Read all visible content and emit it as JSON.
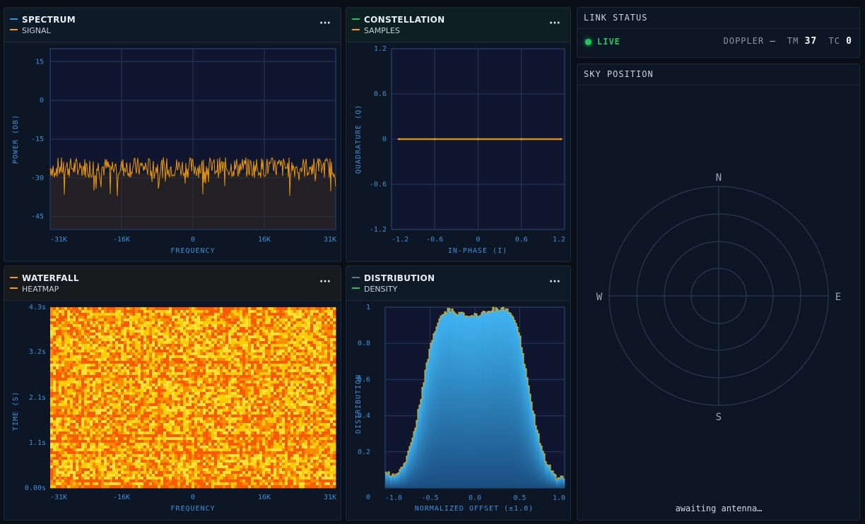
{
  "colors": {
    "spectrum_accent": "#2f8fe0",
    "signal": "#f59e0b",
    "constellation_accent": "#22c55e",
    "waterfall_accent": "#f59e0b",
    "distribution_accent": "#64748b",
    "density": "#22c55e",
    "live": "#22c55e"
  },
  "spectrum": {
    "title": "SPECTRUM",
    "series_label": "SIGNAL",
    "menu_label": "···",
    "ylabel": "POWER (DB)",
    "xlabel": "FREQUENCY",
    "yticks": [
      "15",
      "0",
      "-15",
      "-30",
      "-45"
    ],
    "xticks": [
      "-31K",
      "-16K",
      "0",
      "16K",
      "31K"
    ]
  },
  "constellation": {
    "title": "CONSTELLATION",
    "series_label": "SAMPLES",
    "menu_label": "···",
    "ylabel": "QUADRATURE (Q)",
    "xlabel": "IN-PHASE (I)",
    "yticks": [
      "1.2",
      "0.6",
      "0",
      "-0.6",
      "-1.2"
    ],
    "xticks": [
      "-1.2",
      "-0.6",
      "0",
      "0.6",
      "1.2"
    ]
  },
  "waterfall": {
    "title": "WATERFALL",
    "series_label": "HEATMAP",
    "menu_label": "···",
    "ylabel": "TIME (S)",
    "xlabel": "FREQUENCY",
    "yticks": [
      "4.3s",
      "3.2s",
      "2.1s",
      "1.1s",
      "0.00s"
    ],
    "xticks": [
      "-31K",
      "-16K",
      "0",
      "16K",
      "31K"
    ]
  },
  "distribution": {
    "title": "DISTRIBUTION",
    "series_label": "DENSITY",
    "menu_label": "···",
    "ylabel": "DISTRIBUTION",
    "xlabel": "NORMALIZED OFFSET (±1.0)",
    "yticks": [
      "1",
      "0.8",
      "0.6",
      "0.4",
      "0.2",
      "0"
    ],
    "xticks": [
      "-1.0",
      "-0.5",
      "0.0",
      "0.5",
      "1.0"
    ]
  },
  "link_status": {
    "title": "LINK STATUS",
    "live_label": "LIVE",
    "doppler_label": "DOPPLER",
    "doppler_value": "—",
    "tm_label": "TM",
    "tm_value": "37",
    "tc_label": "TC",
    "tc_value": "0"
  },
  "sky_position": {
    "title": "SKY POSITION",
    "north": "N",
    "south": "S",
    "east": "E",
    "west": "W",
    "status": "awaiting antenna…"
  },
  "chart_data": [
    {
      "type": "line",
      "series": [
        {
          "name": "SIGNAL",
          "pattern": "noise",
          "mean": -26,
          "spread": 4
        }
      ],
      "x_range": [
        -31000,
        31000
      ],
      "ylim": [
        -50,
        20
      ],
      "xlabel": "FREQUENCY",
      "ylabel": "POWER (DB)",
      "grid": true
    },
    {
      "type": "scatter",
      "series": [
        {
          "name": "SAMPLES",
          "points": [
            [
              -1.2,
              0
            ],
            [
              -0.6,
              0
            ],
            [
              0,
              0
            ],
            [
              0.6,
              0
            ],
            [
              1.2,
              0
            ]
          ]
        }
      ],
      "xlim": [
        -1.2,
        1.2
      ],
      "ylim": [
        -1.2,
        1.2
      ],
      "xlabel": "IN-PHASE (I)",
      "ylabel": "QUADRATURE (Q)",
      "grid": true
    },
    {
      "type": "heatmap",
      "x_range": [
        -31000,
        31000
      ],
      "y_range": [
        0,
        4.3
      ],
      "colormap": [
        "#ff5a00",
        "#ff8c00",
        "#ffcc00",
        "#ffe23a"
      ],
      "xlabel": "FREQUENCY",
      "ylabel": "TIME (S)"
    },
    {
      "type": "bar",
      "series": [
        {
          "name": "DENSITY"
        }
      ],
      "x": [
        -1.0,
        -0.9,
        -0.8,
        -0.7,
        -0.6,
        -0.5,
        -0.4,
        -0.3,
        -0.2,
        -0.1,
        0.0,
        0.1,
        0.2,
        0.3,
        0.4,
        0.5,
        0.6,
        0.7,
        0.8,
        0.9,
        1.0
      ],
      "values": [
        0.1,
        0.06,
        0.12,
        0.25,
        0.5,
        0.78,
        0.93,
        0.98,
        0.97,
        0.95,
        0.96,
        0.97,
        0.99,
        0.99,
        0.97,
        0.85,
        0.55,
        0.3,
        0.14,
        0.06,
        0.06
      ],
      "xlim": [
        -1.0,
        1.0
      ],
      "ylim": [
        0,
        1
      ],
      "xlabel": "NORMALIZED OFFSET (±1.0)",
      "ylabel": "DISTRIBUTION",
      "grid": true
    }
  ]
}
